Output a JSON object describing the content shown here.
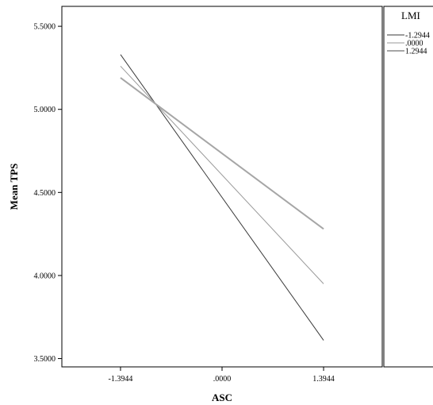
{
  "chart_data": {
    "type": "line",
    "title": "",
    "xlabel": "ASC",
    "ylabel": "Mean TPS",
    "x_tick_labels": [
      "-1.3944",
      ".0000",
      "1.3944"
    ],
    "x": [
      -1.3944,
      1.3944
    ],
    "xlim": [
      -2.2,
      2.2
    ],
    "ylim": [
      3.45,
      5.62
    ],
    "y_ticks": [
      3.5,
      4.0,
      4.5,
      5.0,
      5.5
    ],
    "y_tick_labels": [
      "3.5000",
      "4.0000",
      "4.5000",
      "5.0000",
      "5.5000"
    ],
    "legend": {
      "title": "LMI",
      "position": "right"
    },
    "series": [
      {
        "name": "-1.2944",
        "values": [
          5.33,
          3.61
        ],
        "color": "#3a3a3a"
      },
      {
        "name": ".0000",
        "values": [
          5.26,
          3.95
        ],
        "color": "#9a9a9a"
      },
      {
        "name": "1.2944",
        "values": [
          5.19,
          4.28
        ],
        "color": "#a6a6a6"
      }
    ]
  }
}
